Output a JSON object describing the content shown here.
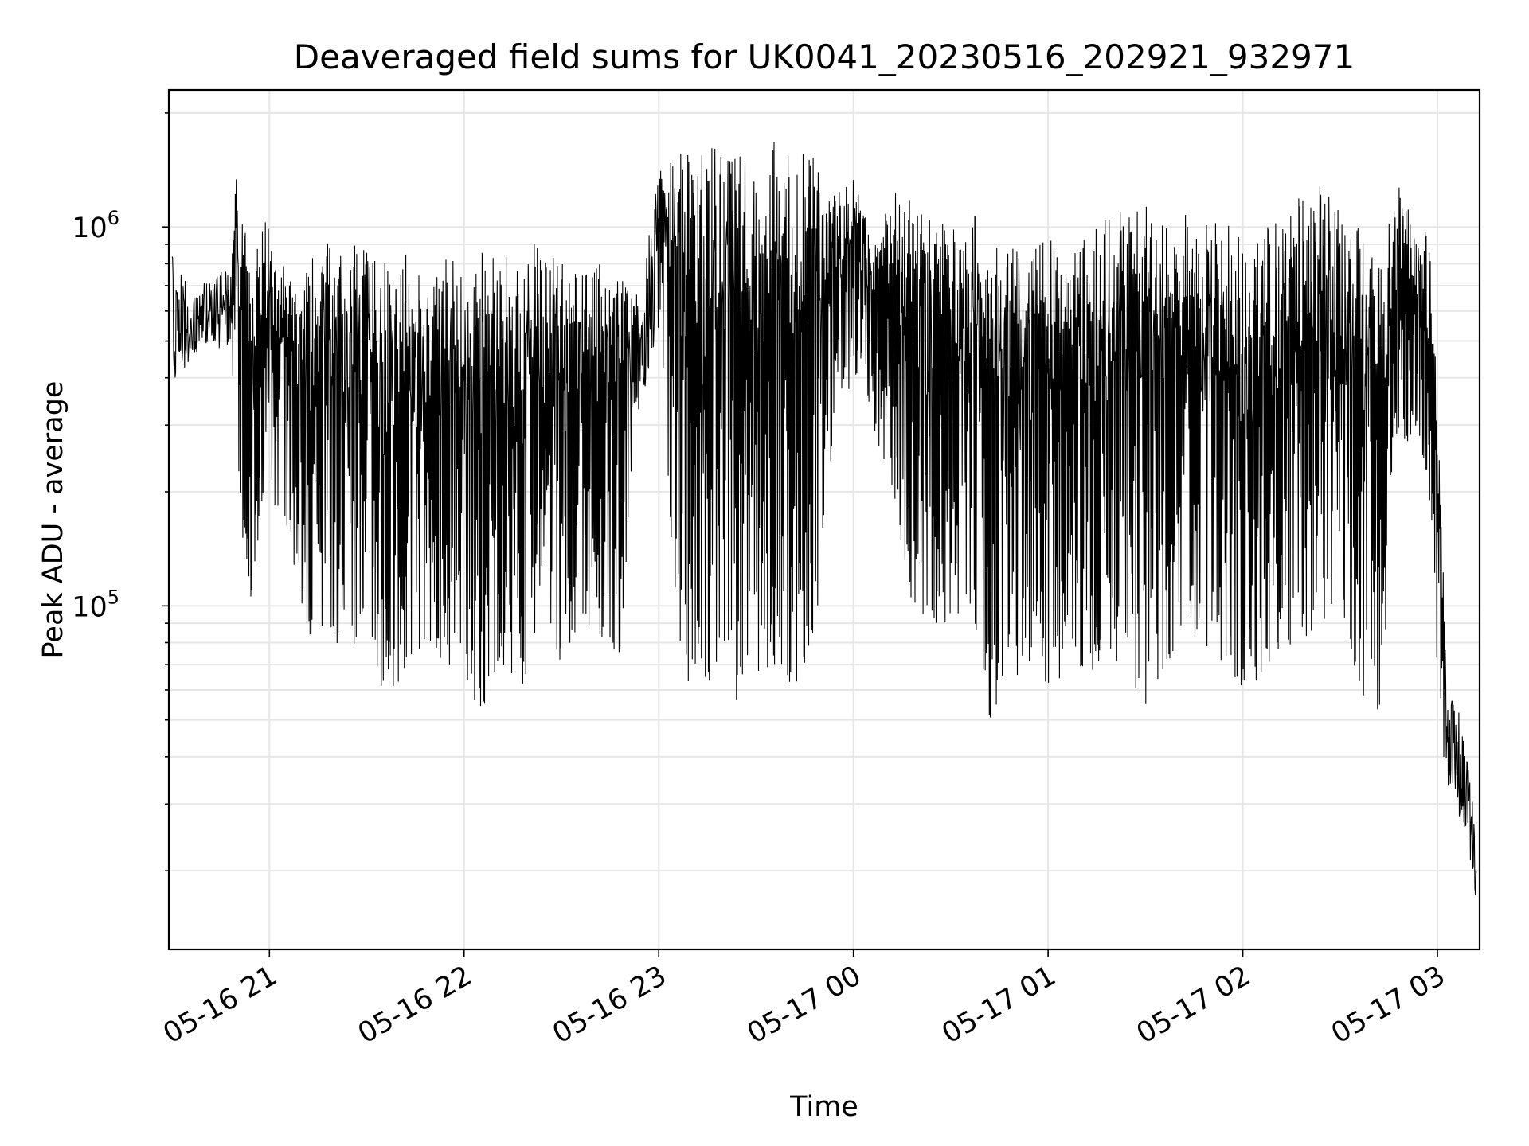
{
  "chart_data": {
    "type": "line",
    "title": "Deaveraged field sums for UK0041_20230516_202921_932971",
    "xlabel": "Time",
    "ylabel": "Peak ADU - average",
    "yscale": "log",
    "grid": true,
    "color": "#000000",
    "xlim": [
      "05-16 20:29",
      "05-17 03:13"
    ],
    "ylim": [
      12400,
      2300000
    ],
    "x_ticks": [
      {
        "at": "05-16 21:00",
        "label": "05-16 21"
      },
      {
        "at": "05-16 22:00",
        "label": "05-16 22"
      },
      {
        "at": "05-16 23:00",
        "label": "05-16 23"
      },
      {
        "at": "05-17 00:00",
        "label": "05-17 00"
      },
      {
        "at": "05-17 01:00",
        "label": "05-17 01"
      },
      {
        "at": "05-17 02:00",
        "label": "05-17 02"
      },
      {
        "at": "05-17 03:00",
        "label": "05-17 03"
      }
    ],
    "y_ticks": [
      {
        "at": 100000,
        "base": "10",
        "exp": "5"
      },
      {
        "at": 1000000,
        "base": "10",
        "exp": "6"
      }
    ],
    "x": [
      "05-16 20:30",
      "05-16 20:36",
      "05-16 20:42",
      "05-16 20:48",
      "05-16 20:50",
      "05-16 20:54",
      "05-16 21:00",
      "05-16 21:06",
      "05-16 21:12",
      "05-16 21:18",
      "05-16 21:24",
      "05-16 21:30",
      "05-16 21:36",
      "05-16 21:42",
      "05-16 21:48",
      "05-16 21:54",
      "05-16 22:00",
      "05-16 22:06",
      "05-16 22:12",
      "05-16 22:18",
      "05-16 22:24",
      "05-16 22:30",
      "05-16 22:36",
      "05-16 22:42",
      "05-16 22:48",
      "05-16 22:54",
      "05-16 23:00",
      "05-16 23:06",
      "05-16 23:12",
      "05-16 23:18",
      "05-16 23:24",
      "05-16 23:30",
      "05-16 23:36",
      "05-16 23:42",
      "05-16 23:48",
      "05-16 23:54",
      "05-17 00:00",
      "05-17 00:06",
      "05-17 00:12",
      "05-17 00:18",
      "05-17 00:24",
      "05-17 00:30",
      "05-17 00:36",
      "05-17 00:42",
      "05-17 00:48",
      "05-17 00:54",
      "05-17 01:00",
      "05-17 01:06",
      "05-17 01:12",
      "05-17 01:18",
      "05-17 01:24",
      "05-17 01:30",
      "05-17 01:36",
      "05-17 01:42",
      "05-17 01:48",
      "05-17 01:54",
      "05-17 02:00",
      "05-17 02:06",
      "05-17 02:12",
      "05-17 02:18",
      "05-17 02:24",
      "05-17 02:30",
      "05-17 02:36",
      "05-17 02:42",
      "05-17 02:48",
      "05-17 02:54",
      "05-17 02:58",
      "05-17 03:00",
      "05-17 03:03",
      "05-17 03:06",
      "05-17 03:09",
      "05-17 03:12"
    ],
    "upper": [
      850000,
      700000,
      720000,
      800000,
      1500000,
      900000,
      1100000,
      750000,
      800000,
      1100000,
      900000,
      1000000,
      800000,
      900000,
      700000,
      850000,
      800000,
      900000,
      850000,
      850000,
      950000,
      800000,
      900000,
      850000,
      750000,
      650000,
      1400000,
      1650000,
      1700000,
      1600000,
      1650000,
      1500000,
      1700000,
      1500000,
      1650000,
      1300000,
      1400000,
      900000,
      1250000,
      1200000,
      1050000,
      1050000,
      1100000,
      1000000,
      1050000,
      850000,
      1000000,
      800000,
      950000,
      1050000,
      1250000,
      1150000,
      1000000,
      1100000,
      1000000,
      1100000,
      1050000,
      1000000,
      1100000,
      1250000,
      1300000,
      1100000,
      1000000,
      800000,
      1300000,
      1000000,
      950000,
      400000,
      60000,
      58000,
      42000,
      25000
    ],
    "lower": [
      350000,
      450000,
      500000,
      450000,
      200000,
      100000,
      200000,
      150000,
      80000,
      90000,
      70000,
      100000,
      50000,
      70000,
      80000,
      70000,
      65000,
      50000,
      70000,
      60000,
      100000,
      70000,
      90000,
      80000,
      75000,
      300000,
      550000,
      65000,
      60000,
      60000,
      55000,
      65000,
      70000,
      60000,
      80000,
      300000,
      400000,
      300000,
      200000,
      100000,
      90000,
      90000,
      100000,
      50000,
      60000,
      65000,
      55000,
      70000,
      60000,
      80000,
      60000,
      55000,
      70000,
      75000,
      80000,
      70000,
      60000,
      65000,
      80000,
      75000,
      90000,
      100000,
      60000,
      50000,
      250000,
      300000,
      180000,
      45000,
      32000,
      30000,
      22000,
      14000
    ]
  }
}
